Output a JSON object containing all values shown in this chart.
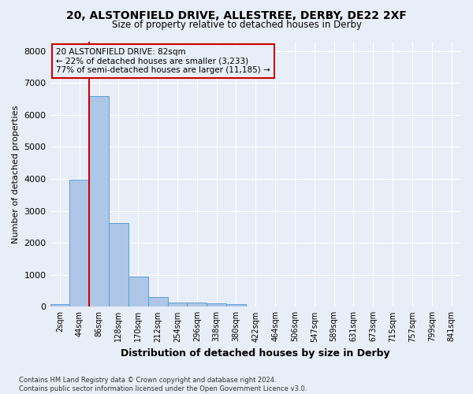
{
  "title_line1": "20, ALSTONFIELD DRIVE, ALLESTREE, DERBY, DE22 2XF",
  "title_line2": "Size of property relative to detached houses in Derby",
  "xlabel": "Distribution of detached houses by size in Derby",
  "ylabel": "Number of detached properties",
  "footnote": "Contains HM Land Registry data © Crown copyright and database right 2024.\nContains public sector information licensed under the Open Government Licence v3.0.",
  "bar_labels": [
    "2sqm",
    "44sqm",
    "86sqm",
    "128sqm",
    "170sqm",
    "212sqm",
    "254sqm",
    "296sqm",
    "338sqm",
    "380sqm",
    "422sqm",
    "464sqm",
    "506sqm",
    "547sqm",
    "589sqm",
    "631sqm",
    "673sqm",
    "715sqm",
    "757sqm",
    "799sqm",
    "841sqm"
  ],
  "bar_values": [
    80,
    3980,
    6580,
    2620,
    950,
    310,
    130,
    120,
    95,
    75,
    0,
    0,
    0,
    0,
    0,
    0,
    0,
    0,
    0,
    0,
    0
  ],
  "bar_color": "#aec6e8",
  "bar_edge_color": "#5a9fd4",
  "property_label": "20 ALSTONFIELD DRIVE: 82sqm",
  "pct_smaller": "22%",
  "n_smaller": "3,233",
  "pct_larger_semi": "77%",
  "n_larger_semi": "11,185",
  "vline_color": "#cc0000",
  "ylim_max": 8300,
  "background_color": "#e8eef7",
  "grid_color": "#ffffff",
  "annotation_line1": "20 ALSTONFIELD DRIVE: 82sqm",
  "annotation_line2": "← 22% of detached houses are smaller (3,233)",
  "annotation_line3": "77% of semi-detached houses are larger (11,185) →"
}
